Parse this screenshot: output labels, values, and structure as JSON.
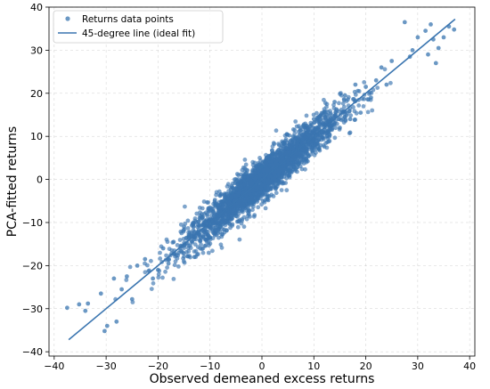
{
  "chart_data": {
    "type": "scatter",
    "title": "",
    "xlabel": "Observed demeaned excess returns",
    "ylabel": "PCA-fitted returns",
    "xlim": [
      -41,
      41
    ],
    "ylim": [
      -41,
      40
    ],
    "xticks": [
      -40,
      -30,
      -20,
      -10,
      0,
      10,
      20,
      30,
      40
    ],
    "yticks": [
      -40,
      -30,
      -20,
      -10,
      0,
      10,
      20,
      30,
      40
    ],
    "grid": true,
    "legend_position": "top-left",
    "colors": {
      "points": "#3a75b0",
      "line": "#3a75b0"
    },
    "series": [
      {
        "name": "Returns data points",
        "kind": "scatter",
        "description_points": [
          [
            -37.5,
            -29.8
          ],
          [
            -35.2,
            -29.0
          ],
          [
            -34.0,
            -30.5
          ],
          [
            -30.3,
            -35.2
          ],
          [
            -29.8,
            -34.0
          ],
          [
            -28.0,
            -33.0
          ],
          [
            -33.5,
            -28.8
          ],
          [
            -31.0,
            -26.5
          ],
          [
            -28.5,
            -23.0
          ],
          [
            -27.0,
            -25.5
          ],
          [
            -26.0,
            -22.5
          ],
          [
            -25.0,
            -27.8
          ],
          [
            -24.0,
            -20.0
          ],
          [
            -22.5,
            -18.5
          ],
          [
            -21.0,
            -23.0
          ],
          [
            -20.0,
            -21.0
          ],
          [
            -19.0,
            -16.0
          ],
          [
            -18.0,
            -19.5
          ],
          [
            -17.0,
            -14.5
          ],
          [
            -16.0,
            -17.0
          ],
          [
            -15.0,
            -11.0
          ],
          [
            -14.0,
            -13.0
          ],
          [
            -13.0,
            -18.0
          ],
          [
            -12.0,
            -9.0
          ],
          [
            -10.0,
            -13.5
          ],
          [
            -9.0,
            -6.0
          ],
          [
            -8.0,
            -11.0
          ],
          [
            -6.0,
            -3.0
          ],
          [
            -5.0,
            -8.5
          ],
          [
            -3.0,
            1.5
          ],
          [
            -2.0,
            -5.5
          ],
          [
            0.0,
            3.0
          ],
          [
            1.0,
            -4.0
          ],
          [
            2.0,
            6.0
          ],
          [
            3.0,
            -1.0
          ],
          [
            4.0,
            8.5
          ],
          [
            5.0,
            2.0
          ],
          [
            6.0,
            10.0
          ],
          [
            7.0,
            3.5
          ],
          [
            8.0,
            12.5
          ],
          [
            9.0,
            5.5
          ],
          [
            10.0,
            14.0
          ],
          [
            11.0,
            7.0
          ],
          [
            12.0,
            15.5
          ],
          [
            13.0,
            10.5
          ],
          [
            14.0,
            18.0
          ],
          [
            15.0,
            12.0
          ],
          [
            16.0,
            19.5
          ],
          [
            17.0,
            14.0
          ],
          [
            18.0,
            22.0
          ],
          [
            19.0,
            15.5
          ],
          [
            20.0,
            21.5
          ],
          [
            21.0,
            19.0
          ],
          [
            22.0,
            23.0
          ],
          [
            23.0,
            26.0
          ],
          [
            24.0,
            22.0
          ],
          [
            25.0,
            27.5
          ],
          [
            27.5,
            36.5
          ],
          [
            28.5,
            28.5
          ],
          [
            29.0,
            30.0
          ],
          [
            31.5,
            34.5
          ],
          [
            32.0,
            29.0
          ],
          [
            33.0,
            32.5
          ],
          [
            34.0,
            30.5
          ],
          [
            35.0,
            33.0
          ],
          [
            36.0,
            35.5
          ],
          [
            37.0,
            34.8
          ],
          [
            32.5,
            36.0
          ],
          [
            33.5,
            27.0
          ],
          [
            30.0,
            33.0
          ]
        ]
      },
      {
        "name": "45-degree line (ideal fit)",
        "kind": "line",
        "x": [
          -37.2,
          37.2
        ],
        "y": [
          -37.2,
          37.2
        ]
      }
    ]
  },
  "legend": {
    "items": [
      {
        "label": "Returns data points",
        "marker": "dot"
      },
      {
        "label": "45-degree line (ideal fit)",
        "marker": "line"
      }
    ]
  }
}
